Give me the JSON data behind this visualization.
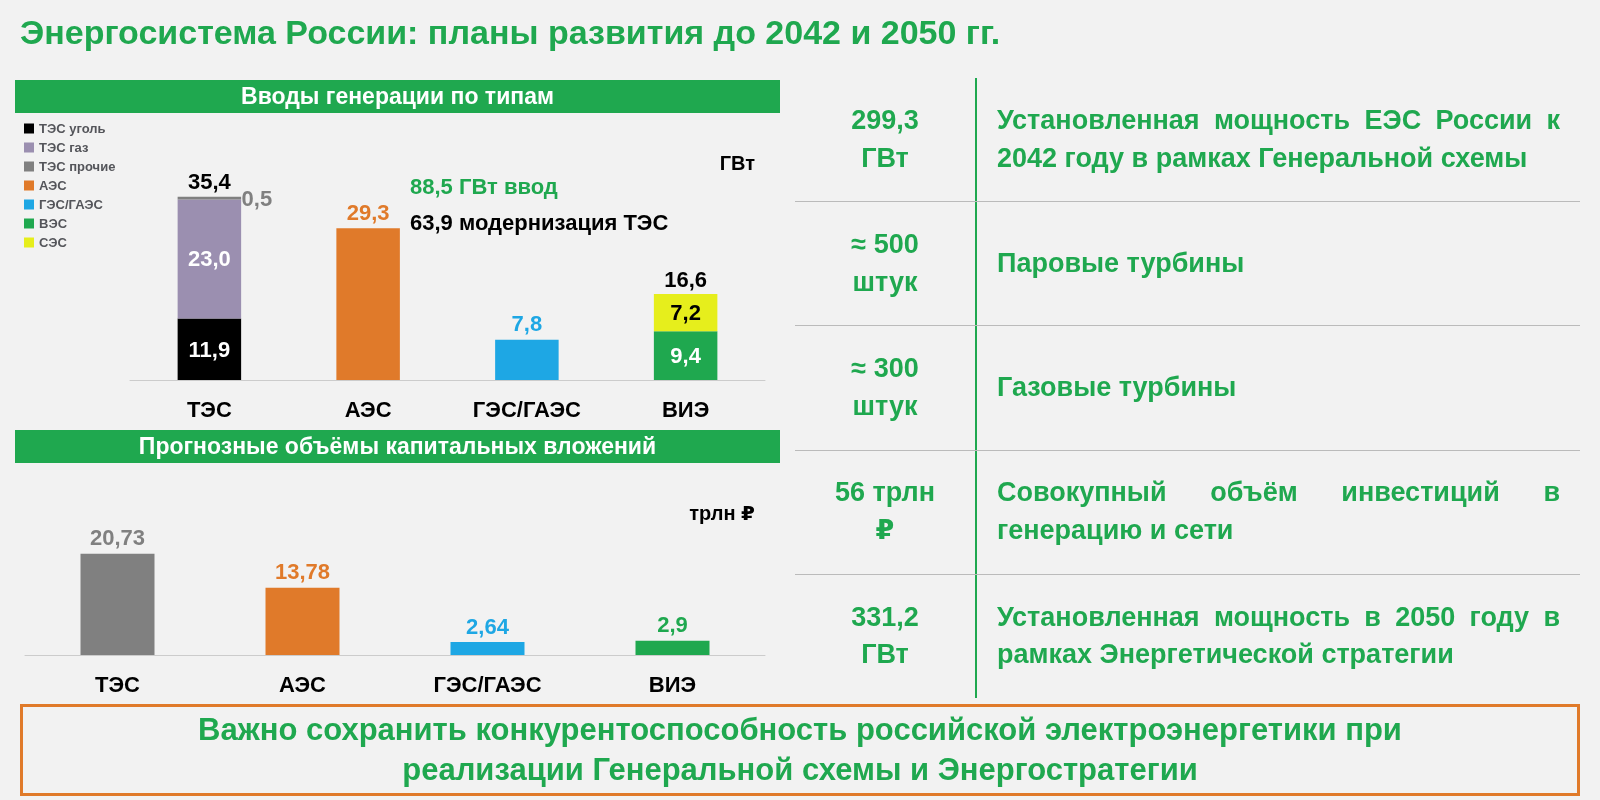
{
  "chart_data": [
    {
      "type": "other",
      "title": "Энергосистема России: планы развития до 2042 и 2050 гг."
    },
    {
      "type": "bar",
      "title": "Вводы генерации по типам",
      "ylabel": "ГВт",
      "categories": [
        "ТЭС",
        "АЭС",
        "ГЭС/ГАЭС",
        "ВИЭ"
      ],
      "stacked": true,
      "legend": "top left",
      "grid": false,
      "annotations": [
        "88,5 ГВт ввод",
        "63,9 модернизация ТЭС"
      ],
      "totals": [
        "35,4",
        null,
        null,
        "16,6"
      ],
      "series": [
        {
          "name": "ТЭС уголь",
          "color": "#000000",
          "values": [
            11.9,
            null,
            null,
            null
          ],
          "value_labels": [
            "11,9",
            null,
            null,
            null
          ]
        },
        {
          "name": "ТЭС газ",
          "color": "#9b8fb0",
          "values": [
            23.0,
            null,
            null,
            null
          ],
          "value_labels": [
            "23,0",
            null,
            null,
            null
          ]
        },
        {
          "name": "ТЭС прочие",
          "color": "#808080",
          "values": [
            0.5,
            null,
            null,
            null
          ],
          "value_labels": [
            "0,5",
            null,
            null,
            null
          ]
        },
        {
          "name": "АЭС",
          "color": "#e07a2a",
          "values": [
            null,
            29.3,
            null,
            null
          ],
          "value_labels": [
            null,
            "29,3",
            null,
            null
          ]
        },
        {
          "name": "ГЭС/ГАЭС",
          "color": "#1ea7e4",
          "values": [
            null,
            null,
            7.8,
            null
          ],
          "value_labels": [
            null,
            null,
            "7,8",
            null
          ]
        },
        {
          "name": "ВЭС",
          "color": "#1fa84f",
          "values": [
            null,
            null,
            null,
            9.4
          ],
          "value_labels": [
            null,
            null,
            null,
            "9,4"
          ]
        },
        {
          "name": "СЭС",
          "color": "#e6ee1c",
          "values": [
            null,
            null,
            null,
            7.2
          ],
          "value_labels": [
            null,
            null,
            null,
            "7,2"
          ]
        }
      ]
    },
    {
      "type": "bar",
      "title": "Прогнозные объёмы капитальных вложений",
      "ylabel": "трлн ₽",
      "categories": [
        "ТЭС",
        "АЭС",
        "ГЭС/ГАЭС",
        "ВИЭ"
      ],
      "grid": false,
      "values": [
        20.73,
        13.78,
        2.64,
        2.9
      ],
      "colors": [
        "#808080",
        "#e07a2a",
        "#1ea7e4",
        "#1fa84f"
      ],
      "value_labels": [
        "20,73",
        "13,78",
        "2,64",
        "2,9"
      ]
    },
    {
      "type": "other",
      "annotations": [
        "299,3 ГВт",
        "Установленная мощность ЕЭС России к 2042 году в рамках Генеральной схемы",
        "≈ 500 штук",
        "Паровые турбины",
        "≈ 300 штук",
        "Газовые турбины",
        "56 трлн ₽",
        "Совокупный объём инвестиций в генерацию и сети",
        "331,2 ГВт",
        "Установленная мощность в 2050 году в рамках Энергетической стратегии"
      ]
    },
    {
      "type": "other",
      "annotations": [
        "Важно сохранить конкурентоспособность российской электроэнергетики при реализации Генеральной схемы и Энергостратегии"
      ]
    }
  ]
}
